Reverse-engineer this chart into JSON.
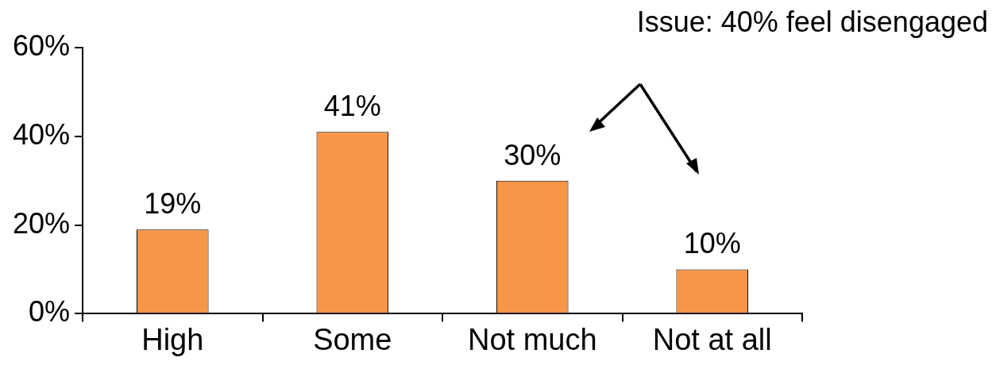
{
  "chart_data": {
    "type": "bar",
    "categories": [
      "High",
      "Some",
      "Not much",
      "Not at all"
    ],
    "values": [
      19,
      41,
      30,
      10
    ],
    "value_labels": [
      "19%",
      "41%",
      "30%",
      "10%"
    ],
    "color": "#f79646",
    "ylim": [
      0,
      60
    ],
    "yticks": [
      {
        "value": 0,
        "label": "0%"
      },
      {
        "value": 20,
        "label": "20%"
      },
      {
        "value": 40,
        "label": "40%"
      },
      {
        "value": 60,
        "label": "60%"
      }
    ],
    "grid": false,
    "legend": false,
    "annotations": [
      "Issue: 40% feel disengaged"
    ]
  }
}
